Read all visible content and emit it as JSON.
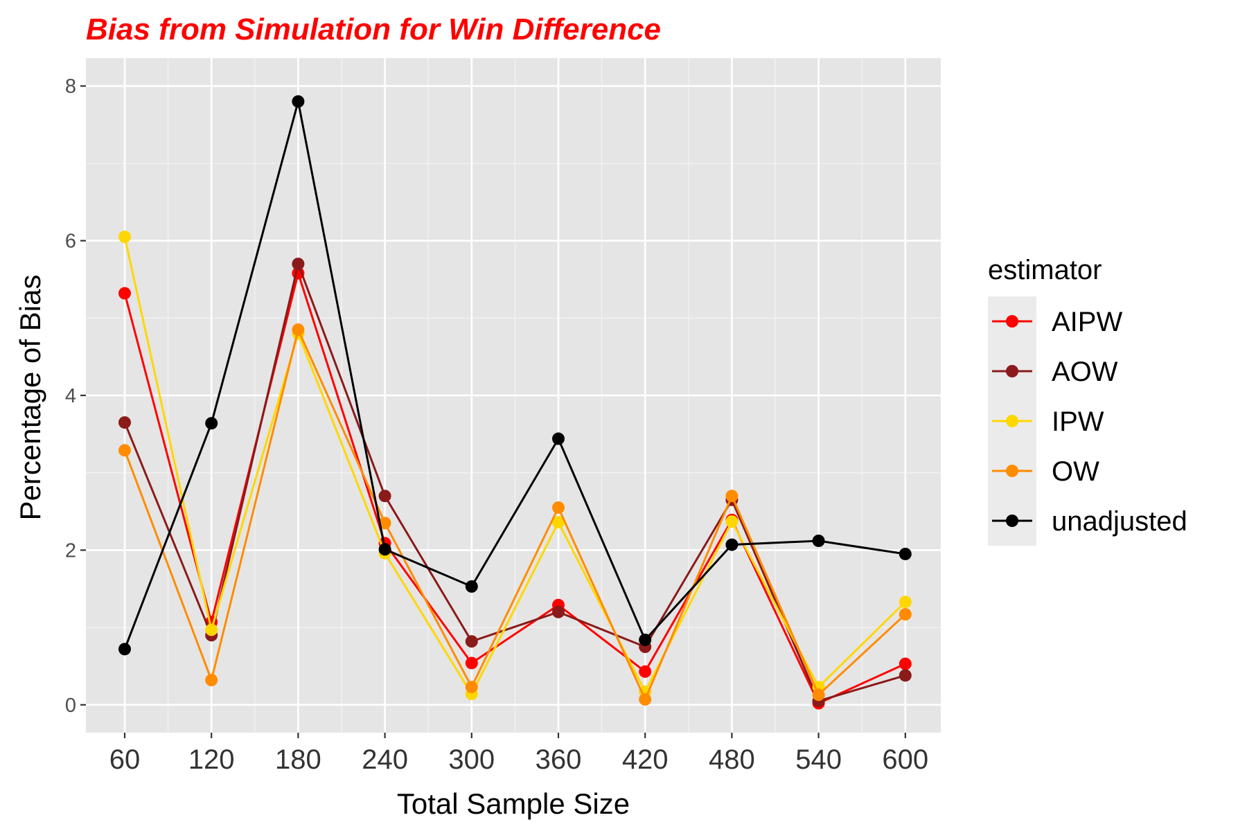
{
  "chart_data": {
    "type": "line",
    "title": "Bias from Simulation for Win Difference",
    "xlabel": "Total Sample Size",
    "ylabel": "Percentage of Bias",
    "categories": [
      "60",
      "120",
      "180",
      "240",
      "300",
      "360",
      "420",
      "480",
      "540",
      "600"
    ],
    "ylim": [
      -0.36,
      8.36
    ],
    "yticks": [
      0,
      2,
      4,
      6,
      8
    ],
    "grid": true,
    "legend_title": "estimator",
    "legend_position": "right",
    "series": [
      {
        "name": "AIPW",
        "color": "#ff0000",
        "values": [
          5.32,
          1.07,
          5.58,
          2.09,
          0.54,
          1.29,
          0.43,
          2.39,
          0.02,
          0.53
        ]
      },
      {
        "name": "AOW",
        "color": "#8b1a1a",
        "values": [
          3.65,
          0.9,
          5.7,
          2.7,
          0.82,
          1.2,
          0.75,
          2.65,
          0.05,
          0.38
        ]
      },
      {
        "name": "IPW",
        "color": "#ffd700",
        "values": [
          6.05,
          0.97,
          4.8,
          1.96,
          0.14,
          2.36,
          0.17,
          2.37,
          0.23,
          1.33
        ]
      },
      {
        "name": "OW",
        "color": "#ff8c00",
        "values": [
          3.29,
          0.32,
          4.85,
          2.35,
          0.23,
          2.55,
          0.07,
          2.7,
          0.13,
          1.17
        ]
      },
      {
        "name": "unadjusted",
        "color": "#000000",
        "values": [
          0.72,
          3.64,
          7.8,
          2.01,
          1.53,
          3.44,
          0.84,
          2.07,
          2.12,
          1.95
        ]
      }
    ]
  }
}
